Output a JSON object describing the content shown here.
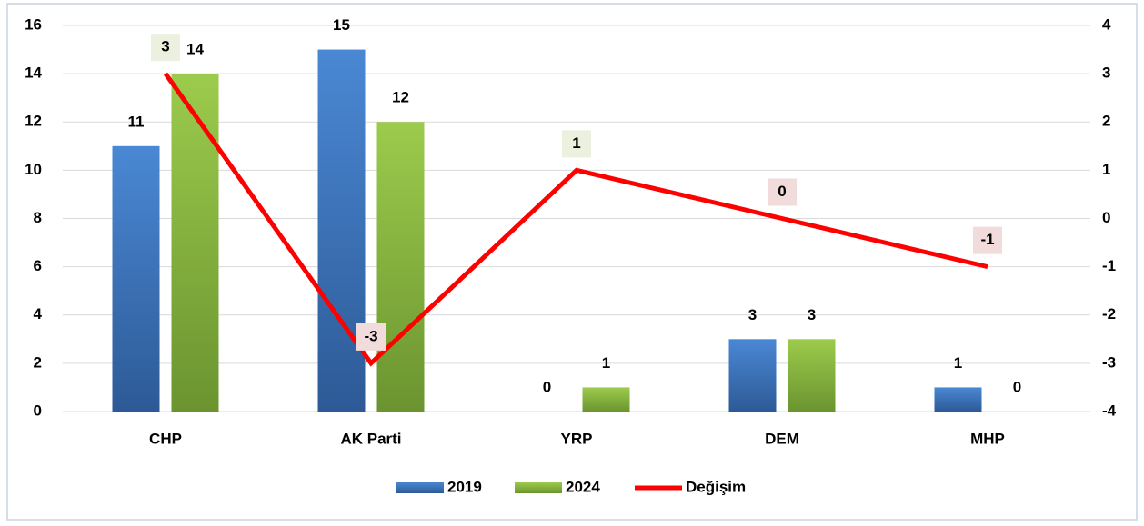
{
  "chart_data": {
    "type": "bar",
    "categories": [
      "CHP",
      "AK Parti",
      "YRP",
      "DEM",
      "MHP"
    ],
    "series": [
      {
        "name": "2019",
        "type": "bar",
        "color": "#3f78c4",
        "values": [
          11,
          15,
          0,
          3,
          1
        ]
      },
      {
        "name": "2024",
        "type": "bar",
        "color": "#8ab843",
        "values": [
          14,
          12,
          1,
          3,
          0
        ]
      },
      {
        "name": "Değişim",
        "type": "line",
        "axis": "y2",
        "color": "#ff0000",
        "values": [
          3,
          -3,
          1,
          0,
          -1
        ]
      }
    ],
    "ylim": [
      0,
      16
    ],
    "yticks": [
      0,
      2,
      4,
      6,
      8,
      10,
      12,
      14,
      16
    ],
    "y2lim": [
      -4,
      4
    ],
    "y2ticks": [
      -4,
      -3,
      -2,
      -1,
      0,
      1,
      2,
      3,
      4
    ],
    "grid": true,
    "legend": "bottom"
  }
}
